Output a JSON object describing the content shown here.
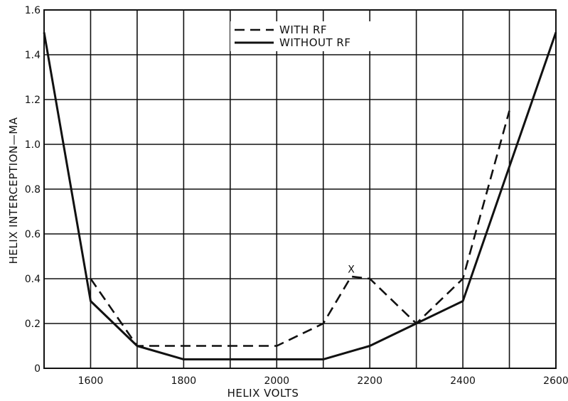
{
  "chart_data": {
    "type": "line",
    "title": "",
    "xlabel": "HELIX VOLTS",
    "ylabel": "HELIX INTERCEPTION—MA",
    "xlim": [
      1500,
      2600
    ],
    "ylim": [
      0,
      1.6
    ],
    "x_ticks": [
      1600,
      1800,
      2000,
      2200,
      2400,
      2600
    ],
    "x_tick_labels": [
      "1600",
      "1800",
      "2000",
      "2200",
      "2400",
      "2600"
    ],
    "x_grid": [
      1500,
      1600,
      1700,
      1800,
      1900,
      2000,
      2100,
      2200,
      2300,
      2400,
      2500,
      2600
    ],
    "y_ticks": [
      0,
      0.2,
      0.4,
      0.6,
      0.8,
      1.0,
      1.2,
      1.4,
      1.6
    ],
    "y_tick_labels": [
      "0",
      "0.2",
      "0.4",
      "0.6",
      "0.8",
      "1.0",
      "1.2",
      "1.4",
      "1.6"
    ],
    "grid": true,
    "legend_position": "top-center",
    "series": [
      {
        "name": "WITH RF",
        "style": "dashed",
        "x": [
          1600,
          1700,
          2000,
          2100,
          2160,
          2200,
          2300,
          2400,
          2500
        ],
        "y": [
          0.4,
          0.1,
          0.1,
          0.2,
          0.41,
          0.4,
          0.2,
          0.4,
          1.15
        ]
      },
      {
        "name": "WITHOUT RF",
        "style": "solid",
        "x": [
          1500,
          1600,
          1700,
          1800,
          2000,
          2100,
          2200,
          2300,
          2400,
          2500,
          2600
        ],
        "y": [
          1.5,
          0.3,
          0.1,
          0.04,
          0.04,
          0.04,
          0.1,
          0.2,
          0.3,
          0.9,
          1.5
        ]
      }
    ],
    "annotations": [
      {
        "text": "X",
        "x": 2160,
        "y": 0.44
      }
    ]
  }
}
